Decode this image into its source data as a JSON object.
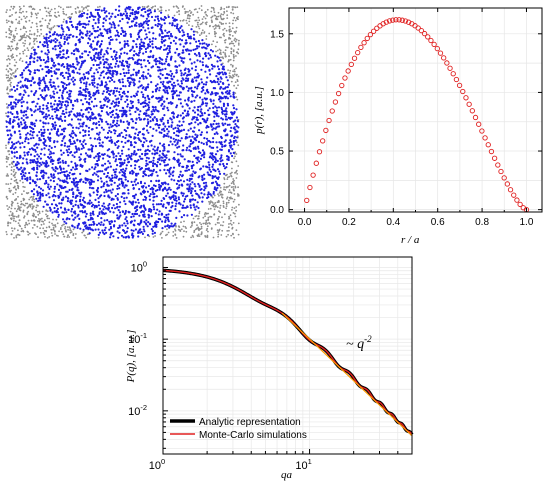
{
  "chart_data": [
    {
      "type": "scatter",
      "description_free": true,
      "disk_color": "#1f1fe0",
      "background_color": "#8c8c8c",
      "disk_radius_fraction": 1.0
    },
    {
      "type": "scatter",
      "xlabel": "r / a",
      "ylabel": "p(r), [a.u.]",
      "xlim": [
        -0.07,
        1.07
      ],
      "ylim": [
        -0.02,
        1.72
      ],
      "xticks": [
        "0.0",
        "0.2",
        "0.4",
        "0.6",
        "0.8",
        "1.0"
      ],
      "xtick_values": [
        0,
        0.2,
        0.4,
        0.6,
        0.8,
        1.0
      ],
      "yticks": [
        "0.0",
        "0.5",
        "1.0",
        "1.5"
      ],
      "ytick_values": [
        0,
        0.5,
        1.0,
        1.5
      ],
      "marker_color": "#e02020",
      "marker": "open-circle",
      "grid": true,
      "curve_form": "12 x^2 (1 - x^2)^(1/2) ... sampled",
      "peak": [
        0.42,
        1.62
      ],
      "n_points": 70
    },
    {
      "type": "line",
      "xscale": "log",
      "yscale": "log",
      "xlabel": "qa",
      "ylabel": "P(q), [a. u.]",
      "xlim": [
        1,
        50
      ],
      "ylim": [
        0.0025,
        1.4
      ],
      "xtick_labels": [
        "10^0",
        "10^1"
      ],
      "ytick_labels": [
        "10^0",
        "10^-1",
        "10^-2"
      ],
      "grid": true,
      "annotation": "~ q^-2",
      "legend_placement": "bottom-left",
      "series": [
        {
          "name": "Analytic representation",
          "color": "#000000"
        },
        {
          "name": "Monte-Carlo simulations",
          "color": "#e02020"
        }
      ],
      "powerlaw_line": {
        "color": "#ff9900",
        "x": [
          6.5,
          50
        ],
        "y": [
          0.23,
          0.0045
        ]
      }
    }
  ],
  "labels": {
    "p_axis": "p(r), [a.u.]",
    "r_axis": "r / a",
    "P_axis": "P(q), [a. u.]",
    "q_axis": "qa",
    "annotation_tilde": "~ ",
    "annotation_q": "q",
    "annotation_exp": "-2",
    "legend_1": "Analytic representation",
    "legend_2": "Monte-Carlo simulations",
    "tick_10": "10",
    "exp_0": "0",
    "exp_1": "1",
    "exp_m1": "-1",
    "exp_m2": "-2"
  }
}
